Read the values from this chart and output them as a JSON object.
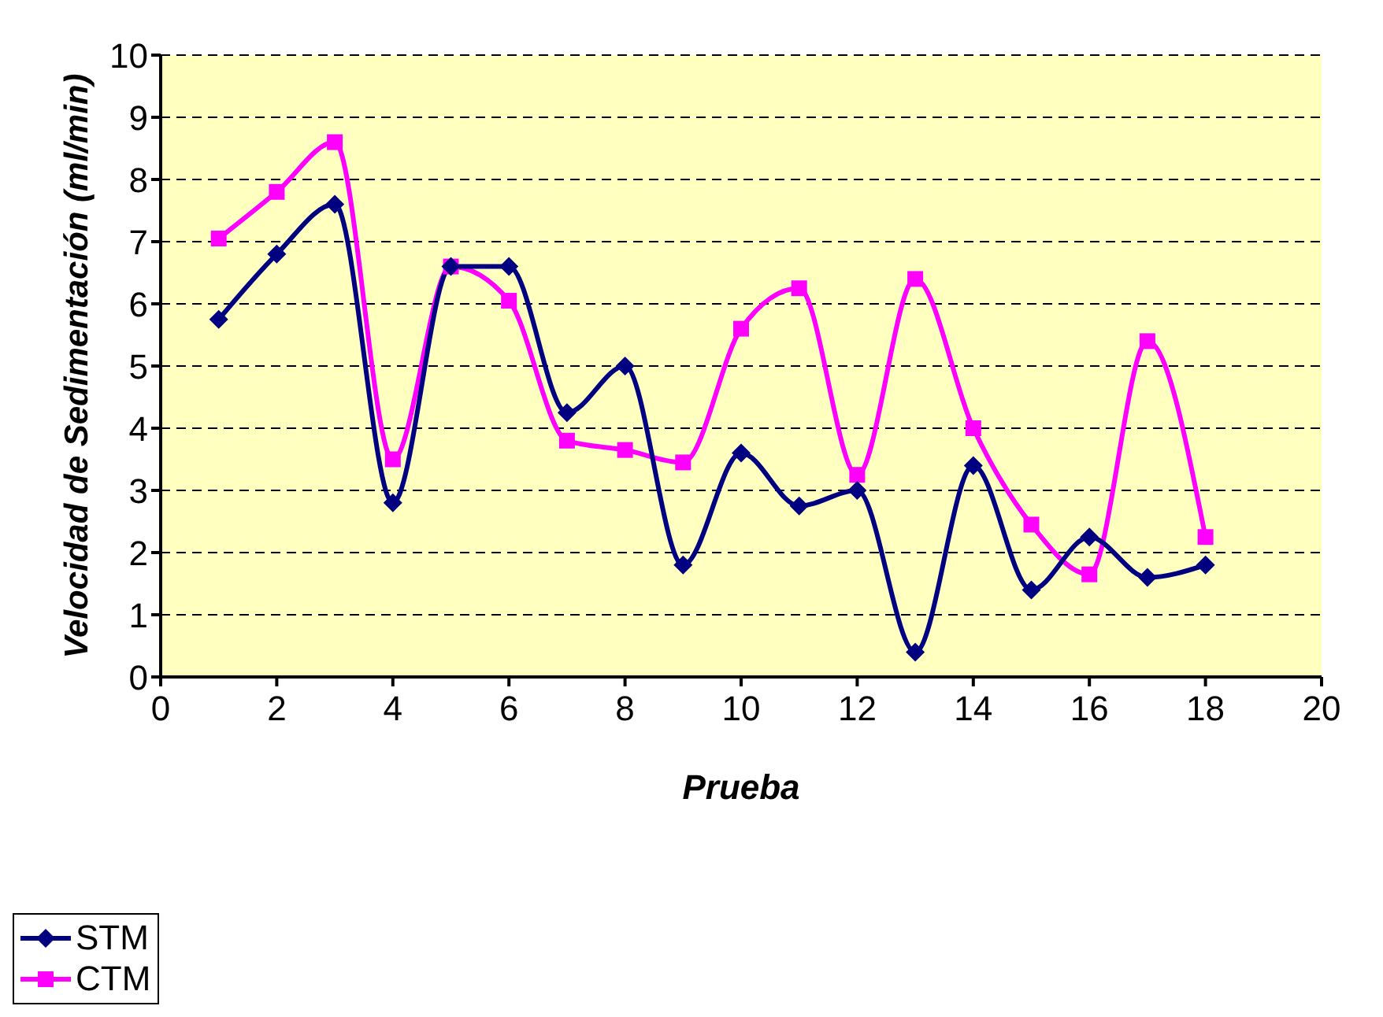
{
  "chart_data": {
    "type": "line",
    "xlabel": "Prueba",
    "ylabel": "Velocidad de Sedimentación (ml/min)",
    "x": [
      1,
      2,
      3,
      4,
      5,
      6,
      7,
      8,
      9,
      10,
      11,
      12,
      13,
      14,
      15,
      16,
      17,
      18
    ],
    "series": [
      {
        "name": "STM",
        "color": "#000080",
        "marker": "diamond",
        "values": [
          5.75,
          6.8,
          7.6,
          2.8,
          6.6,
          6.6,
          4.25,
          5.0,
          1.8,
          3.6,
          2.75,
          3.0,
          0.4,
          3.4,
          1.4,
          2.25,
          1.6,
          1.8
        ]
      },
      {
        "name": "CTM",
        "color": "#ff00ff",
        "marker": "square",
        "values": [
          7.05,
          7.8,
          8.6,
          3.5,
          6.6,
          6.05,
          3.8,
          3.65,
          3.45,
          5.6,
          6.25,
          3.25,
          6.4,
          4.0,
          2.45,
          1.65,
          5.4,
          2.25
        ]
      }
    ],
    "xlim": [
      0,
      20
    ],
    "xticks": [
      0,
      2,
      4,
      6,
      8,
      10,
      12,
      14,
      16,
      18,
      20
    ],
    "ylim": [
      0,
      10
    ],
    "yticks": [
      0,
      1,
      2,
      3,
      4,
      5,
      6,
      7,
      8,
      9,
      10
    ],
    "grid": "y",
    "legend": "bottom left"
  }
}
